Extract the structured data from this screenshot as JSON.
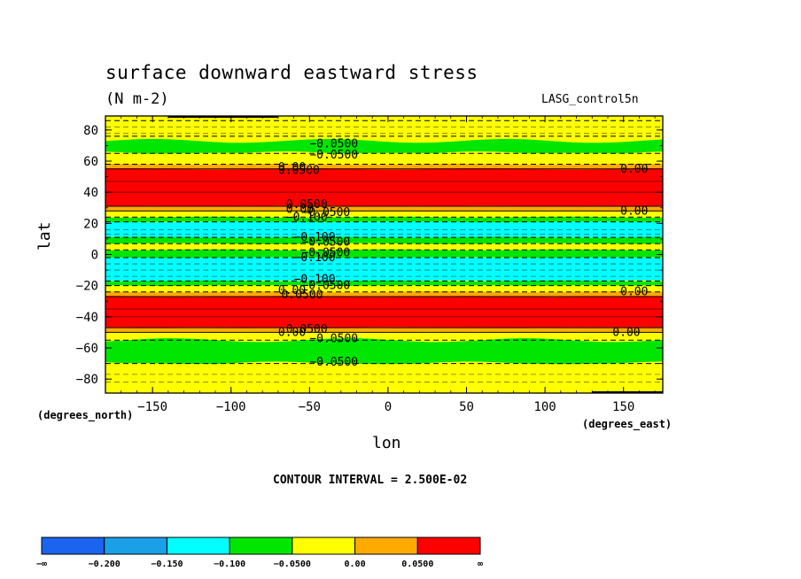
{
  "chart_data": {
    "type": "heatmap",
    "title": "surface downward eastward stress",
    "units": "(N m-2)",
    "model": "LASG_control5n",
    "xlabel": "lon",
    "ylabel": "lat",
    "x_units": "(degrees_east)",
    "y_units": "(degrees_north)",
    "xlim": [
      -180,
      175
    ],
    "ylim": [
      -89,
      89
    ],
    "x_ticks": [
      -150,
      -100,
      -50,
      0,
      50,
      100,
      150
    ],
    "x_tick_labels": [
      "−150",
      "−100",
      "−50",
      "0",
      "50",
      "100",
      "150"
    ],
    "y_ticks": [
      -80,
      -60,
      -40,
      -20,
      0,
      20,
      40,
      60,
      80
    ],
    "y_tick_labels": [
      "−80",
      "−60",
      "−40",
      "−20",
      "0",
      "20",
      "40",
      "60",
      "80"
    ],
    "contour_interval": "CONTOUR INTERVAL = 2.500E-02",
    "levels": [
      -0.2,
      -0.15,
      -0.1,
      -0.05,
      0,
      0.05
    ],
    "colors": [
      "#1a64f0",
      "#1aa0e6",
      "#00ffff",
      "#00e600",
      "#ffff00",
      "#ffaa00",
      "#ff0000"
    ],
    "colorbar_labels": [
      "−∞",
      "−0.200",
      "−0.150",
      "−0.100",
      "−0.0500",
      "0.00",
      "0.0500",
      "∞"
    ],
    "bands": [
      {
        "lat_from": 86,
        "lat_to": 89,
        "class": -0.025
      },
      {
        "lat_from": 76,
        "lat_to": 86,
        "class": -0.025
      },
      {
        "lat_from": 65,
        "lat_to": 73,
        "class": -0.075
      },
      {
        "lat_from": 58,
        "lat_to": 65,
        "class": -0.025
      },
      {
        "lat_from": 55,
        "lat_to": 58,
        "class": 0.025
      },
      {
        "lat_from": 31,
        "lat_to": 55,
        "class": 0.075
      },
      {
        "lat_from": 28,
        "lat_to": 31,
        "class": 0.025
      },
      {
        "lat_from": 24,
        "lat_to": 28,
        "class": -0.025
      },
      {
        "lat_from": 21,
        "lat_to": 24,
        "class": -0.075
      },
      {
        "lat_from": 11,
        "lat_to": 21,
        "class": -0.125
      },
      {
        "lat_from": 7,
        "lat_to": 11,
        "class": -0.075
      },
      {
        "lat_from": 3,
        "lat_to": 7,
        "class": -0.025
      },
      {
        "lat_from": -2,
        "lat_to": 3,
        "class": -0.075
      },
      {
        "lat_from": -17,
        "lat_to": -2,
        "class": -0.125
      },
      {
        "lat_from": -20,
        "lat_to": -17,
        "class": -0.075
      },
      {
        "lat_from": -24,
        "lat_to": -20,
        "class": -0.025
      },
      {
        "lat_from": -27,
        "lat_to": -24,
        "class": 0.025
      },
      {
        "lat_from": -47,
        "lat_to": -27,
        "class": 0.075
      },
      {
        "lat_from": -50,
        "lat_to": -47,
        "class": 0.025
      },
      {
        "lat_from": -55,
        "lat_to": -50,
        "class": -0.025
      },
      {
        "lat_from": -70,
        "lat_to": -55,
        "class": -0.075
      },
      {
        "lat_from": -89,
        "lat_to": -70,
        "class": -0.025
      }
    ],
    "contour_labels": [
      {
        "lon": -50,
        "lat": 71,
        "text": "−0.0500"
      },
      {
        "lon": -50,
        "lat": 64,
        "text": "−0.0500"
      },
      {
        "lon": -70,
        "lat": 56,
        "text": "0.00"
      },
      {
        "lon": -70,
        "lat": 54,
        "text": "0.0500"
      },
      {
        "lon": 148,
        "lat": 55,
        "text": "0.00"
      },
      {
        "lon": -65,
        "lat": 32,
        "text": "0.0500"
      },
      {
        "lon": -65,
        "lat": 29,
        "text": "0.00"
      },
      {
        "lon": -55,
        "lat": 27,
        "text": "−0.0500"
      },
      {
        "lon": -65,
        "lat": 24,
        "text": "−0.100"
      },
      {
        "lon": 148,
        "lat": 28,
        "text": "0.00"
      },
      {
        "lon": -60,
        "lat": 11,
        "text": "−0.100"
      },
      {
        "lon": -55,
        "lat": 8,
        "text": "−0.0500"
      },
      {
        "lon": -55,
        "lat": 1,
        "text": "−0.0500"
      },
      {
        "lon": -60,
        "lat": -2,
        "text": "−0.100"
      },
      {
        "lon": -60,
        "lat": -16,
        "text": "−0.100"
      },
      {
        "lon": -55,
        "lat": -20,
        "text": "−0.0500"
      },
      {
        "lon": -70,
        "lat": -23,
        "text": "0.00"
      },
      {
        "lon": -68,
        "lat": -26,
        "text": "0.0500"
      },
      {
        "lon": 148,
        "lat": -24,
        "text": "0.00"
      },
      {
        "lon": -65,
        "lat": -48,
        "text": "0.0500"
      },
      {
        "lon": -70,
        "lat": -50,
        "text": "0.00"
      },
      {
        "lon": -50,
        "lat": -54,
        "text": "−0.0500"
      },
      {
        "lon": 143,
        "lat": -50,
        "text": "0.00"
      },
      {
        "lon": -50,
        "lat": -69,
        "text": "−0.0500"
      }
    ]
  }
}
